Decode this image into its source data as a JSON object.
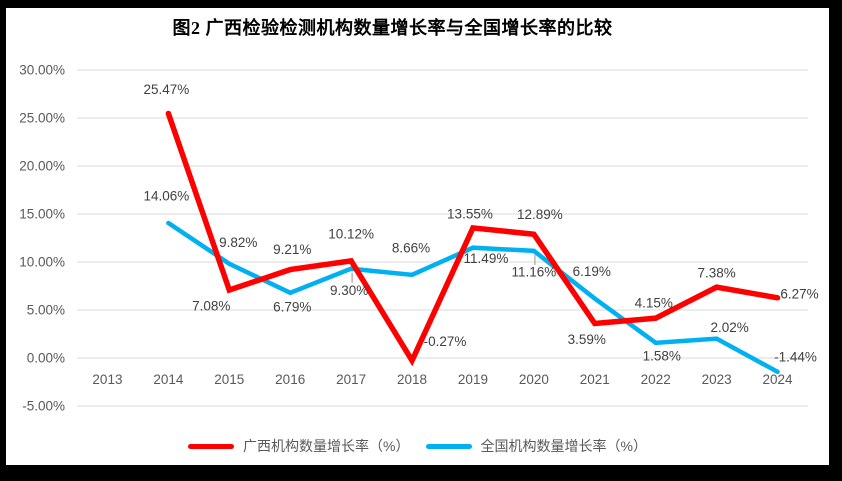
{
  "frame": {
    "background": "#000000"
  },
  "chart_data": {
    "type": "line",
    "title": "图2 广西检验检测机构数量增长率与全国增长率的比较",
    "xlabel": "",
    "ylabel": "",
    "ylim": [
      -5,
      30
    ],
    "grid": true,
    "legend_position": "bottom",
    "plot_background": "#FFFFFF",
    "y_axis": {
      "tick_values": [
        30,
        25,
        20,
        15,
        10,
        5,
        0,
        -5
      ],
      "tick_labels": [
        "30.00%",
        "25.00%",
        "20.00%",
        "15.00%",
        "10.00%",
        "5.00%",
        "0.00%",
        "-5.00%"
      ]
    },
    "categories": [
      "2013",
      "2014",
      "2015",
      "2016",
      "2017",
      "2018",
      "2019",
      "2020",
      "2021",
      "2022",
      "2023",
      "2024"
    ],
    "series": [
      {
        "name": "广西机构数量增长率（%）",
        "color": "#FF0000",
        "values": [
          null,
          25.47,
          7.08,
          9.21,
          10.12,
          -0.27,
          13.55,
          12.89,
          3.59,
          4.15,
          7.38,
          6.27
        ],
        "labels": [
          "",
          "25.47%",
          "7.08%",
          "9.21%",
          "10.12%",
          "-0.27%",
          "13.55%",
          "12.89%",
          "3.59%",
          "4.15%",
          "7.38%",
          "6.27%"
        ],
        "label_offsets": [
          [
            0,
            0
          ],
          [
            -2,
            -24
          ],
          [
            -18,
            16
          ],
          [
            2,
            -20
          ],
          [
            0,
            -27
          ],
          [
            33,
            -19
          ],
          [
            -3,
            -14
          ],
          [
            6,
            -20
          ],
          [
            -8,
            16
          ],
          [
            -2,
            -15
          ],
          [
            0,
            -14
          ],
          [
            22,
            -4
          ]
        ],
        "leader_indices": []
      },
      {
        "name": "全国机构数量增长率（%）",
        "color": "#00B0F0",
        "values": [
          null,
          14.06,
          9.82,
          6.79,
          9.3,
          8.66,
          11.49,
          11.16,
          6.19,
          1.58,
          2.02,
          -1.44
        ],
        "labels": [
          "",
          "14.06%",
          "9.82%",
          "6.79%",
          "9.30%",
          "8.66%",
          "11.49%",
          "11.16%",
          "6.19%",
          "1.58%",
          "2.02%",
          "-1.44%"
        ],
        "label_offsets": [
          [
            0,
            0
          ],
          [
            -2,
            -27
          ],
          [
            9,
            -21
          ],
          [
            2,
            14
          ],
          [
            -2,
            22
          ],
          [
            -1,
            -27
          ],
          [
            13,
            11
          ],
          [
            0,
            21
          ],
          [
            -3,
            -27
          ],
          [
            6,
            13
          ],
          [
            13,
            -11
          ],
          [
            18,
            -15
          ]
        ],
        "leader_indices": [
          4,
          7
        ]
      }
    ],
    "style_colors": {
      "gridline": "#D9D9D9",
      "axis_text": "#595959",
      "data_label_text": "#404040",
      "leader_line": "#A6A6A6",
      "title_text": "#000000"
    }
  }
}
